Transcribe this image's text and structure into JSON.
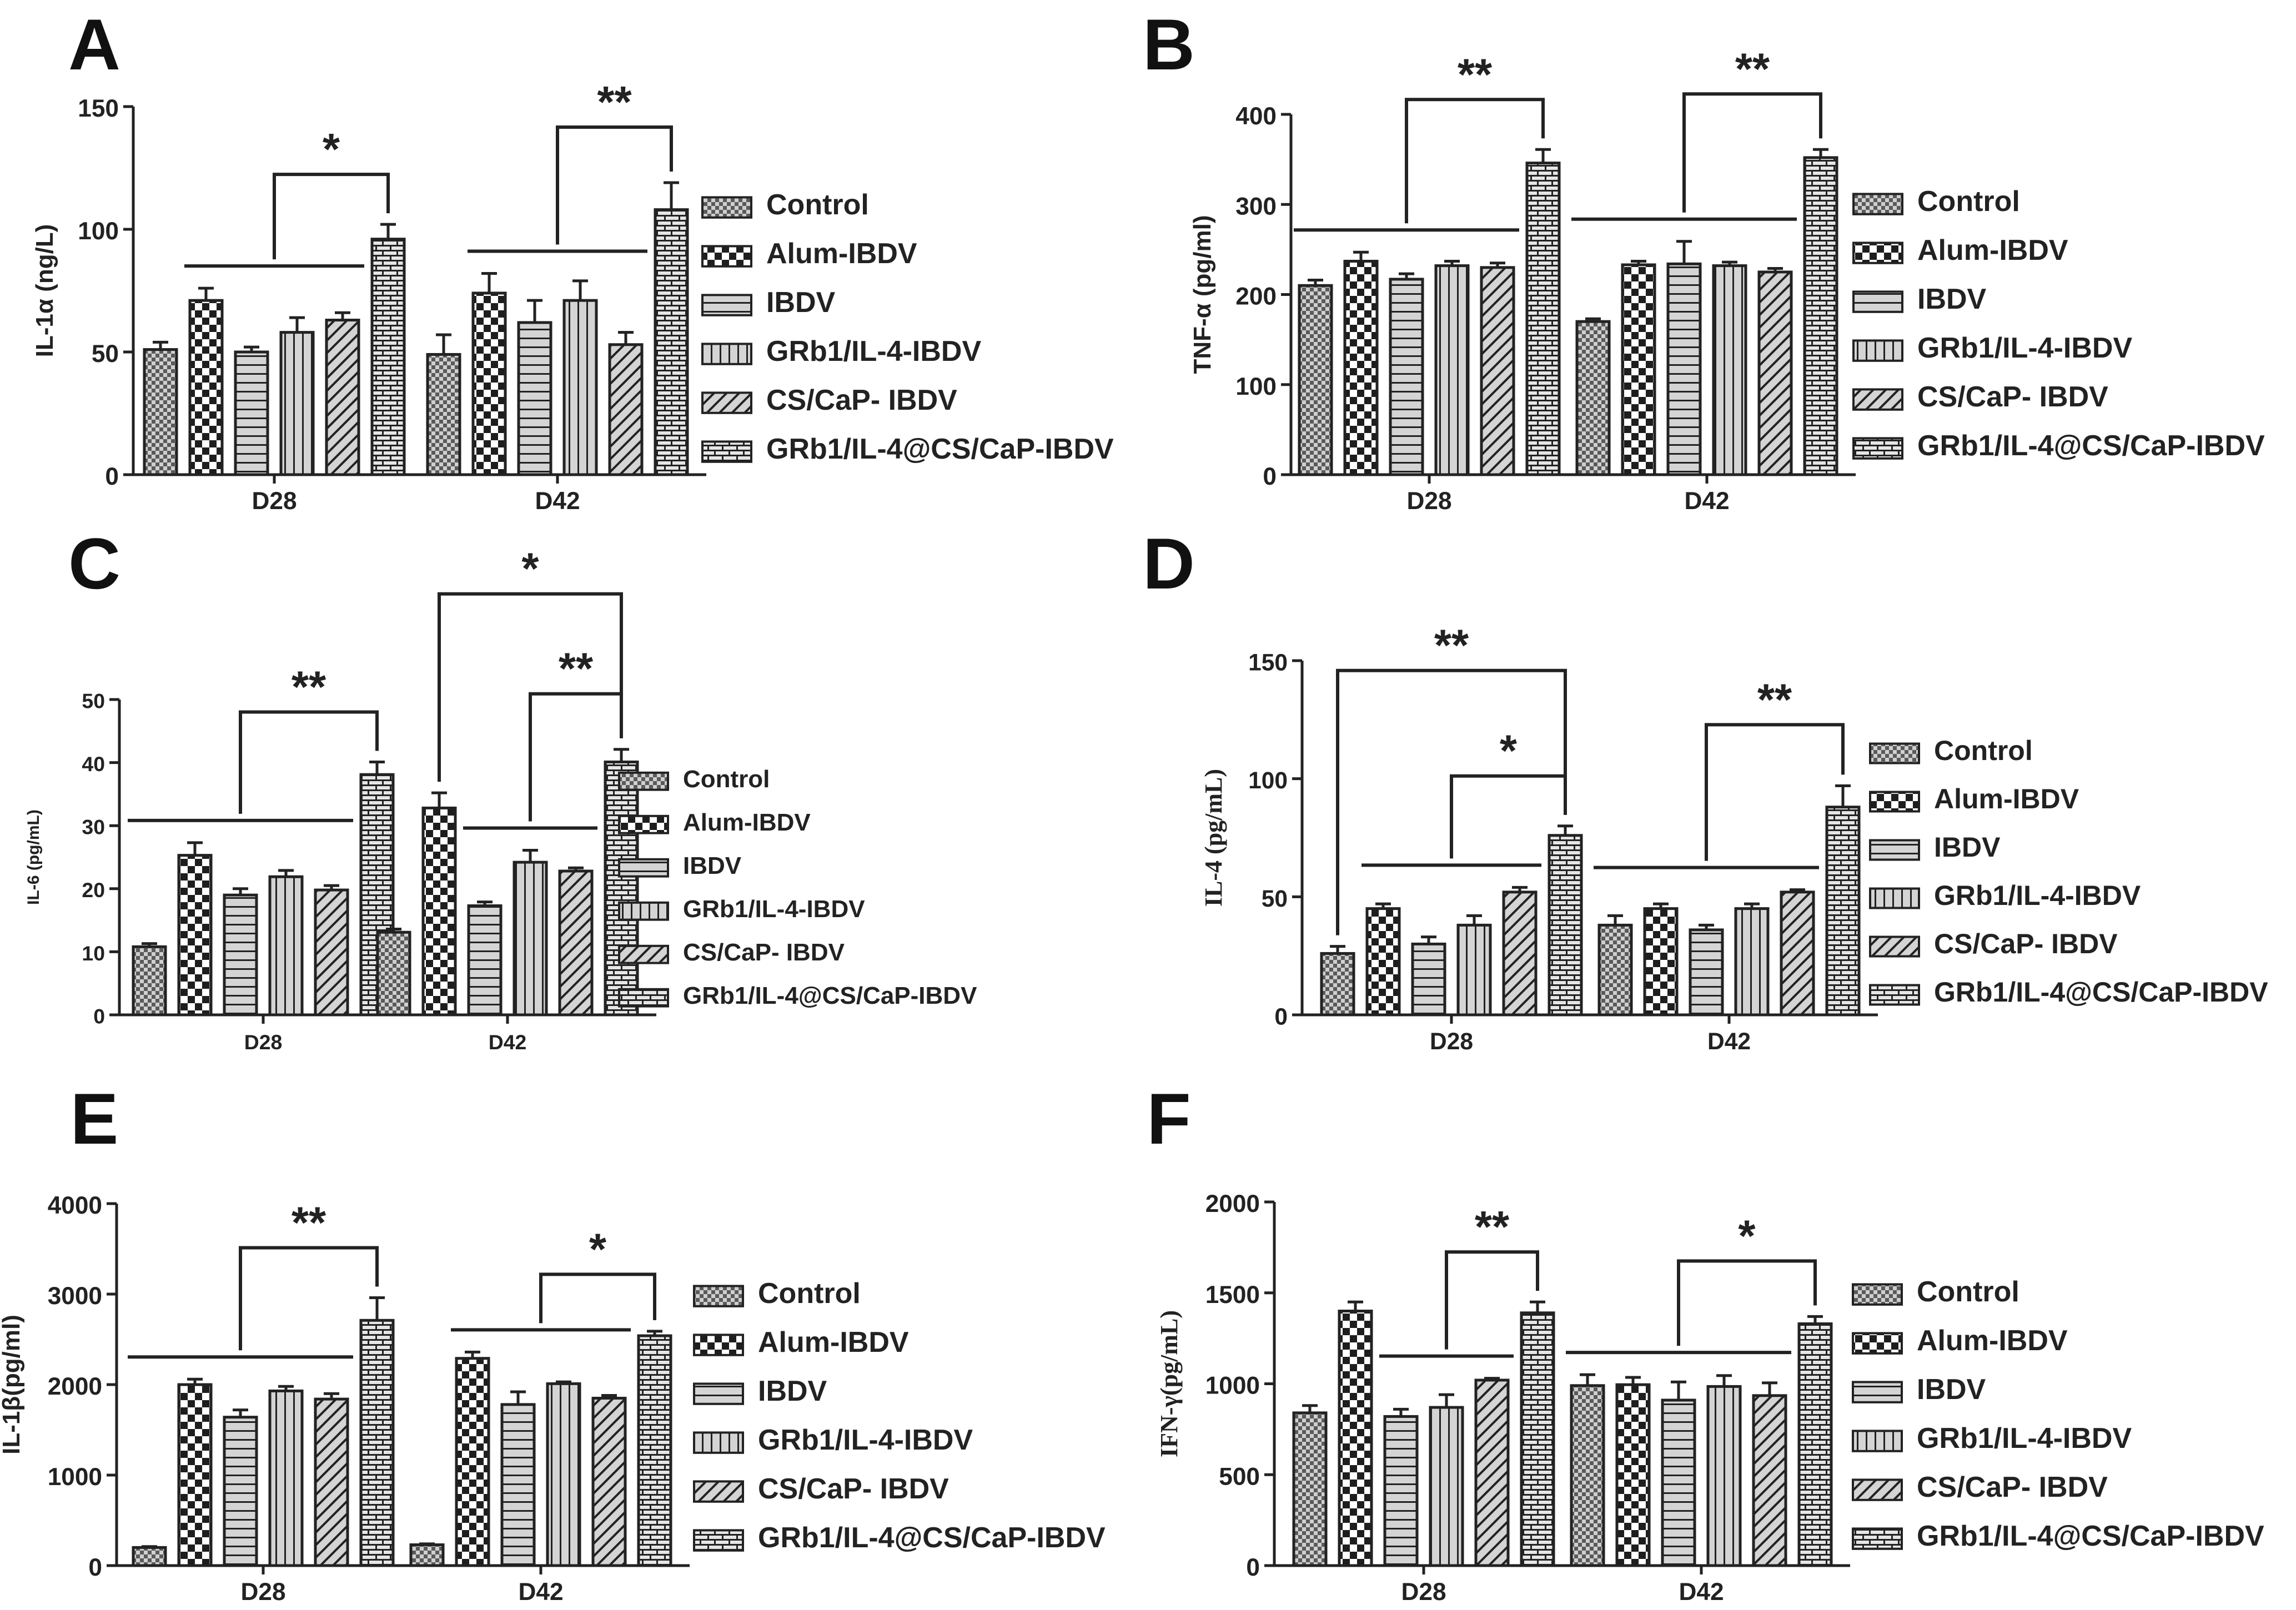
{
  "colors": {
    "fill": "#c8c8c8",
    "stroke": "#222222",
    "pattern": "#222222"
  },
  "legend": [
    "Control",
    "Alum-IBDV",
    "IBDV",
    "GRb1/IL-4-IBDV",
    "CS/CaP- IBDV",
    "GRb1/IL-4@CS/CaP-IBDV"
  ],
  "chart_data": [
    {
      "panel": "A",
      "type": "bar",
      "title": "",
      "xlabel": "",
      "ylabel": "IL-1α (ng/L)",
      "categories": [
        "D28",
        "D42"
      ],
      "ylim": [
        0,
        150
      ],
      "yticks": [
        0,
        50,
        100,
        150
      ],
      "series": [
        {
          "name": "Control",
          "values": [
            51,
            49
          ],
          "errors": [
            3,
            8
          ]
        },
        {
          "name": "Alum-IBDV",
          "values": [
            71,
            74
          ],
          "errors": [
            5,
            8
          ]
        },
        {
          "name": "IBDV",
          "values": [
            50,
            62
          ],
          "errors": [
            2,
            9
          ]
        },
        {
          "name": "GRb1/IL-4-IBDV",
          "values": [
            58,
            71
          ],
          "errors": [
            6,
            8
          ]
        },
        {
          "name": "CS/CaP- IBDV",
          "values": [
            63,
            53
          ],
          "errors": [
            3,
            5
          ]
        },
        {
          "name": "GRb1/IL-4@CS/CaP-IBDV",
          "values": [
            96,
            108
          ],
          "errors": [
            6,
            11
          ]
        }
      ],
      "annotations": [
        {
          "group": 0,
          "from": 1,
          "to": 4,
          "to_bar": 5,
          "label": "*"
        },
        {
          "group": 1,
          "from": 1,
          "to": 4,
          "to_bar": 5,
          "label": "**"
        }
      ]
    },
    {
      "panel": "B",
      "type": "bar",
      "title": "",
      "xlabel": "",
      "ylabel": "TNF-α (pg/ml)",
      "categories": [
        "D28",
        "D42"
      ],
      "ylim": [
        0,
        400
      ],
      "yticks": [
        0,
        100,
        200,
        300,
        400
      ],
      "series": [
        {
          "name": "Control",
          "values": [
            210,
            170
          ],
          "errors": [
            6,
            3
          ]
        },
        {
          "name": "Alum-IBDV",
          "values": [
            237,
            233
          ],
          "errors": [
            10,
            4
          ]
        },
        {
          "name": "IBDV",
          "values": [
            217,
            234
          ],
          "errors": [
            6,
            25
          ]
        },
        {
          "name": "GRb1/IL-4-IBDV",
          "values": [
            232,
            232
          ],
          "errors": [
            5,
            4
          ]
        },
        {
          "name": "CS/CaP- IBDV",
          "values": [
            230,
            225
          ],
          "errors": [
            5,
            4
          ]
        },
        {
          "name": "GRb1/IL-4@CS/CaP-IBDV",
          "values": [
            346,
            352
          ],
          "errors": [
            15,
            9
          ]
        }
      ],
      "annotations": [
        {
          "group": 0,
          "from": 0,
          "to": 4,
          "to_bar": 5,
          "label": "**"
        },
        {
          "group": 1,
          "from": 0,
          "to": 4,
          "to_bar": 5,
          "label": "**"
        }
      ]
    },
    {
      "panel": "C",
      "type": "bar",
      "title": "",
      "xlabel": "",
      "ylabel": "IL-6 (pg/mL)",
      "categories": [
        "D28",
        "D42"
      ],
      "ylim": [
        0,
        50
      ],
      "yticks": [
        0,
        10,
        20,
        30,
        40,
        50
      ],
      "series": [
        {
          "name": "Control",
          "values": [
            10.8,
            13.1
          ],
          "errors": [
            0.5,
            0.5
          ]
        },
        {
          "name": "Alum-IBDV",
          "values": [
            25.3,
            32.8
          ],
          "errors": [
            2.0,
            2.4
          ]
        },
        {
          "name": "IBDV",
          "values": [
            19.0,
            17.3
          ],
          "errors": [
            1.0,
            0.6
          ]
        },
        {
          "name": "GRb1/IL-4-IBDV",
          "values": [
            21.9,
            24.2
          ],
          "errors": [
            1.0,
            1.9
          ]
        },
        {
          "name": "CS/CaP- IBDV",
          "values": [
            19.8,
            22.8
          ],
          "errors": [
            0.7,
            0.5
          ]
        },
        {
          "name": "GRb1/IL-4@CS/CaP-IBDV",
          "values": [
            38.1,
            40.1
          ],
          "errors": [
            2.0,
            2.0
          ]
        }
      ],
      "annotations": [
        {
          "group": 0,
          "from": 0,
          "to": 4,
          "to_bar": 5,
          "label": "**"
        },
        {
          "group": 1,
          "from": 2,
          "to": 4,
          "to_bar": 5,
          "label": "**"
        },
        {
          "group": 1,
          "from_bar": 1,
          "to_bar": 5,
          "label": "*"
        }
      ]
    },
    {
      "panel": "D",
      "type": "bar",
      "title": "",
      "xlabel": "",
      "ylabel": "IL-4 (pg/mL)",
      "categories": [
        "D28",
        "D42"
      ],
      "ylim": [
        0,
        150
      ],
      "yticks": [
        0,
        50,
        100,
        150
      ],
      "series": [
        {
          "name": "Control",
          "values": [
            26,
            38
          ],
          "errors": [
            3,
            4
          ]
        },
        {
          "name": "Alum-IBDV",
          "values": [
            45,
            45
          ],
          "errors": [
            2,
            2
          ]
        },
        {
          "name": "IBDV",
          "values": [
            30,
            36
          ],
          "errors": [
            3,
            2
          ]
        },
        {
          "name": "GRb1/IL-4-IBDV",
          "values": [
            38,
            45
          ],
          "errors": [
            4,
            2
          ]
        },
        {
          "name": "CS/CaP- IBDV",
          "values": [
            52,
            52
          ],
          "errors": [
            2,
            1
          ]
        },
        {
          "name": "GRb1/IL-4@CS/CaP-IBDV",
          "values": [
            76,
            88
          ],
          "errors": [
            4,
            9
          ]
        }
      ],
      "annotations": [
        {
          "group": 0,
          "from": 1,
          "to": 4,
          "to_bar": 5,
          "label": "*"
        },
        {
          "group": 0,
          "from_bar": 0,
          "to_bar": 5,
          "label": "**"
        },
        {
          "group": 1,
          "from": 0,
          "to": 4,
          "to_bar": 5,
          "label": "**"
        }
      ]
    },
    {
      "panel": "E",
      "type": "bar",
      "title": "",
      "xlabel": "",
      "ylabel": "IL-1β(pg/ml)",
      "categories": [
        "D28",
        "D42"
      ],
      "ylim": [
        0,
        4000
      ],
      "yticks": [
        0,
        1000,
        2000,
        3000,
        4000
      ],
      "series": [
        {
          "name": "Control",
          "values": [
            200,
            230
          ],
          "errors": [
            10,
            10
          ]
        },
        {
          "name": "Alum-IBDV",
          "values": [
            2000,
            2290
          ],
          "errors": [
            60,
            70
          ]
        },
        {
          "name": "IBDV",
          "values": [
            1640,
            1780
          ],
          "errors": [
            80,
            140
          ]
        },
        {
          "name": "GRb1/IL-4-IBDV",
          "values": [
            1930,
            2010
          ],
          "errors": [
            50,
            20
          ]
        },
        {
          "name": "CS/CaP- IBDV",
          "values": [
            1840,
            1850
          ],
          "errors": [
            60,
            30
          ]
        },
        {
          "name": "GRb1/IL-4@CS/CaP-IBDV",
          "values": [
            2710,
            2540
          ],
          "errors": [
            250,
            50
          ]
        }
      ],
      "annotations": [
        {
          "group": 0,
          "from": 0,
          "to": 4,
          "to_bar": 5,
          "label": "**"
        },
        {
          "group": 1,
          "from": 1,
          "to": 4,
          "to_bar": 5,
          "label": "*"
        }
      ]
    },
    {
      "panel": "F",
      "type": "bar",
      "title": "",
      "xlabel": "",
      "ylabel": "IFN-γ(pg/mL)",
      "categories": [
        "D28",
        "D42"
      ],
      "ylim": [
        0,
        2000
      ],
      "yticks": [
        0,
        500,
        1000,
        1500,
        2000
      ],
      "series": [
        {
          "name": "Control",
          "values": [
            840,
            990
          ],
          "errors": [
            40,
            60
          ]
        },
        {
          "name": "Alum-IBDV",
          "values": [
            1400,
            995
          ],
          "errors": [
            50,
            40
          ]
        },
        {
          "name": "IBDV",
          "values": [
            820,
            910
          ],
          "errors": [
            40,
            100
          ]
        },
        {
          "name": "GRb1/IL-4-IBDV",
          "values": [
            870,
            985
          ],
          "errors": [
            70,
            60
          ]
        },
        {
          "name": "CS/CaP- IBDV",
          "values": [
            1020,
            935
          ],
          "errors": [
            10,
            70
          ]
        },
        {
          "name": "GRb1/IL-4@CS/CaP-IBDV",
          "values": [
            1390,
            1330
          ],
          "errors": [
            60,
            40
          ]
        }
      ],
      "annotations": [
        {
          "group": 0,
          "from": 2,
          "to": 4,
          "to_bar": 5,
          "label": "**"
        },
        {
          "group": 1,
          "from": 0,
          "to": 4,
          "to_bar": 5,
          "label": "*"
        }
      ]
    }
  ]
}
